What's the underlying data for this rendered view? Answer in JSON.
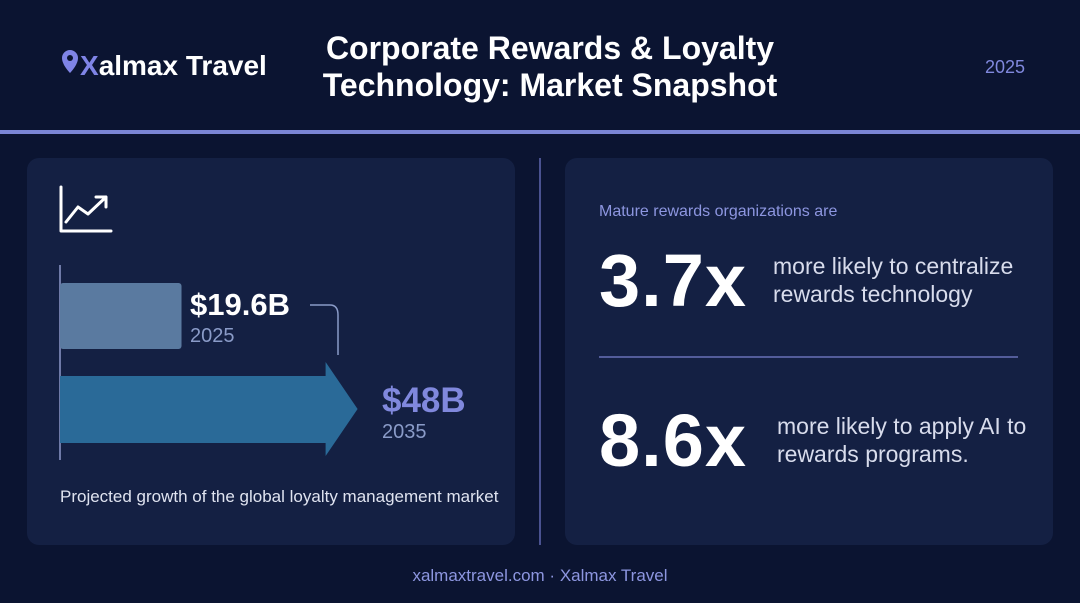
{
  "header": {
    "brand": "Xalmax Travel",
    "title": "Corporate Rewards & Loyalty Technology: Market Snapshot",
    "year": "2025"
  },
  "market": {
    "values": [
      19.6,
      48
    ],
    "value_labels": [
      "$19.6B",
      "$48B"
    ],
    "years": [
      "2025",
      "2035"
    ],
    "caption": "Projected growth of the global loyalty management market"
  },
  "stats": {
    "intro": "Mature rewards organizations are",
    "items": [
      {
        "value": "3.7x",
        "text": "more likely to centralize rewards technology"
      },
      {
        "value": "8.6x",
        "text": "more likely to apply AI to rewards programs."
      }
    ]
  },
  "footer": "xalmaxtravel.com · Xalmax Travel"
}
